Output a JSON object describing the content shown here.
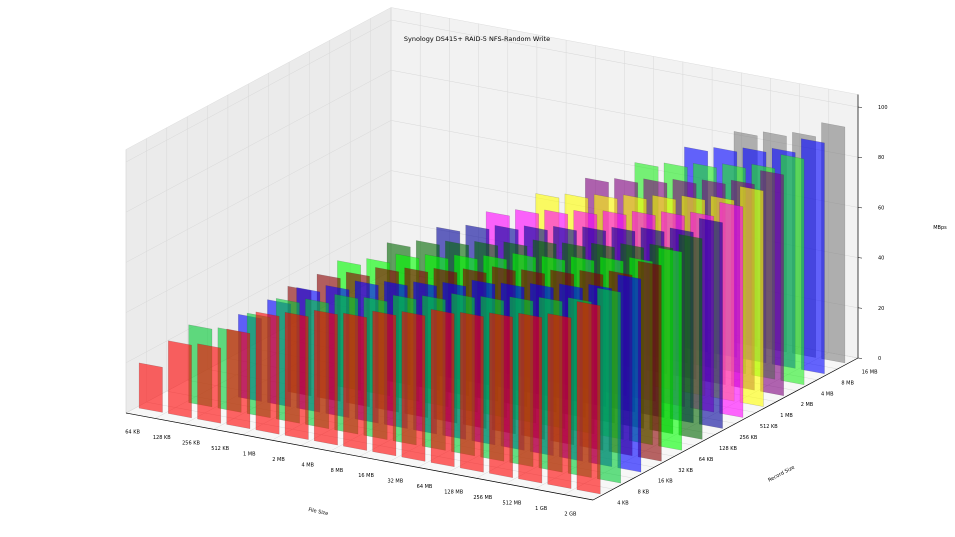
{
  "chart_data": {
    "type": "bar3d",
    "title": "Synology DS415+ RAID-5 NFS-Random Write",
    "xlabel": "File Size",
    "ylabel": "Record Size",
    "zlabel": "MBps",
    "zlim": [
      0,
      100
    ],
    "z_ticks": [
      "0",
      "20",
      "40",
      "60",
      "80",
      "100"
    ],
    "file_sizes": [
      "64 KB",
      "128 KB",
      "256 KB",
      "512 KB",
      "1 MB",
      "2 MB",
      "4 MB",
      "8 MB",
      "16 MB",
      "32 MB",
      "64 MB",
      "128 MB",
      "256 MB",
      "512 MB",
      "1 GB",
      "2 GB"
    ],
    "record_sizes": [
      "4 KB",
      "8 KB",
      "16 KB",
      "32 KB",
      "64 KB",
      "128 KB",
      "256 KB",
      "512 KB",
      "1 MB",
      "2 MB",
      "4 MB",
      "8 MB",
      "16 MB"
    ],
    "record_colors": [
      "#ff0000",
      "#00cc33",
      "#0000ff",
      "#8b0000",
      "#00ff00",
      "#006600",
      "#000099",
      "#ff00ff",
      "#ffff00",
      "#7f007f",
      "#22ee22",
      "#0000ff",
      "#808080"
    ],
    "values": [
      [
        18,
        29,
        30,
        38,
        47,
        49,
        52,
        53,
        56,
        58,
        61,
        62,
        64,
        66,
        68,
        75
      ],
      [
        null,
        31,
        32,
        40,
        48,
        50,
        54,
        55,
        58,
        60,
        63,
        64,
        66,
        68,
        70,
        76
      ],
      [
        null,
        null,
        33,
        41,
        48,
        51,
        55,
        57,
        59,
        61,
        64,
        65,
        67,
        69,
        71,
        77
      ],
      [
        null,
        null,
        null,
        42,
        49,
        52,
        56,
        58,
        60,
        62,
        65,
        66,
        68,
        70,
        72,
        78
      ],
      [
        null,
        null,
        null,
        null,
        50,
        53,
        57,
        59,
        61,
        63,
        66,
        67,
        69,
        71,
        73,
        79
      ],
      [
        null,
        null,
        null,
        null,
        null,
        55,
        58,
        60,
        62,
        64,
        67,
        68,
        70,
        72,
        74,
        80
      ],
      [
        null,
        null,
        null,
        null,
        null,
        null,
        59,
        62,
        64,
        66,
        68,
        70,
        72,
        74,
        76,
        82
      ],
      [
        null,
        null,
        null,
        null,
        null,
        null,
        null,
        63,
        66,
        68,
        70,
        72,
        74,
        76,
        78,
        84
      ],
      [
        null,
        null,
        null,
        null,
        null,
        null,
        null,
        null,
        68,
        70,
        72,
        74,
        76,
        78,
        80,
        86
      ],
      [
        null,
        null,
        null,
        null,
        null,
        null,
        null,
        null,
        null,
        72,
        74,
        76,
        78,
        80,
        82,
        88
      ],
      [
        null,
        null,
        null,
        null,
        null,
        null,
        null,
        null,
        null,
        null,
        76,
        78,
        80,
        82,
        84,
        90
      ],
      [
        null,
        null,
        null,
        null,
        null,
        null,
        null,
        null,
        null,
        null,
        null,
        80,
        82,
        84,
        86,
        92
      ],
      [
        null,
        null,
        null,
        null,
        null,
        null,
        null,
        null,
        null,
        null,
        null,
        null,
        84,
        86,
        88,
        94
      ]
    ]
  }
}
